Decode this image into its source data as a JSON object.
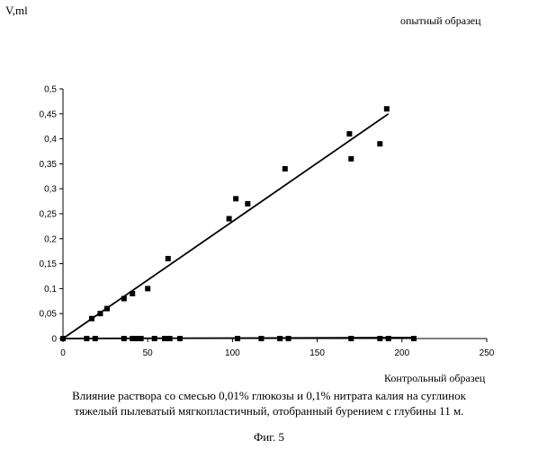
{
  "chart_data": {
    "type": "scatter",
    "title": "",
    "subtitle": "опытный образец",
    "ylabel": "V,ml",
    "xlabel": "Контрольный образец",
    "xlim": [
      0,
      250
    ],
    "ylim": [
      0,
      0.5
    ],
    "x_ticks": [
      0,
      50,
      100,
      150,
      200,
      250
    ],
    "y_ticks": [
      0,
      0.05,
      0.1,
      0.15,
      0.2,
      0.25,
      0.3,
      0.35,
      0.4,
      0.45,
      0.5
    ],
    "y_tick_labels": [
      "0",
      "0,05",
      "0,1",
      "0,15",
      "0,2",
      "0,25",
      "0,3",
      "0,35",
      "0,4",
      "0,45",
      "0,5"
    ],
    "grid": false,
    "legend": "none",
    "series": [
      {
        "marker": "square",
        "x": [
          0,
          17,
          22,
          26,
          36,
          41,
          50,
          62,
          98,
          102,
          109,
          131,
          169,
          170,
          187,
          191
        ],
        "y": [
          0,
          0.04,
          0.05,
          0.06,
          0.08,
          0.09,
          0.1,
          0.16,
          0.24,
          0.28,
          0.27,
          0.34,
          0.41,
          0.36,
          0.39,
          0.46
        ]
      },
      {
        "marker": "square",
        "x": [
          0,
          14,
          19,
          36,
          41,
          43,
          46,
          54,
          60,
          62,
          63,
          69,
          103,
          117,
          128,
          133,
          170,
          187,
          192,
          207
        ],
        "y": [
          0,
          0,
          0,
          0,
          0,
          0,
          0,
          0,
          0,
          0,
          0,
          0,
          0,
          0,
          0,
          0,
          0,
          0,
          0,
          0
        ]
      }
    ],
    "trendlines": [
      {
        "x": [
          0,
          192
        ],
        "y": [
          0,
          0.45
        ]
      },
      {
        "x": [
          0,
          207
        ],
        "y": [
          0,
          0.002
        ]
      }
    ]
  },
  "caption": {
    "line1": "Влияние раствора со смесью 0,01% глюкозы и 0,1% нитрата калия на суглинок",
    "line2": "тяжелый пылеватый мягкопластичный, отобранный бурением с глубины 11 м."
  },
  "figure_label": "Фиг. 5"
}
